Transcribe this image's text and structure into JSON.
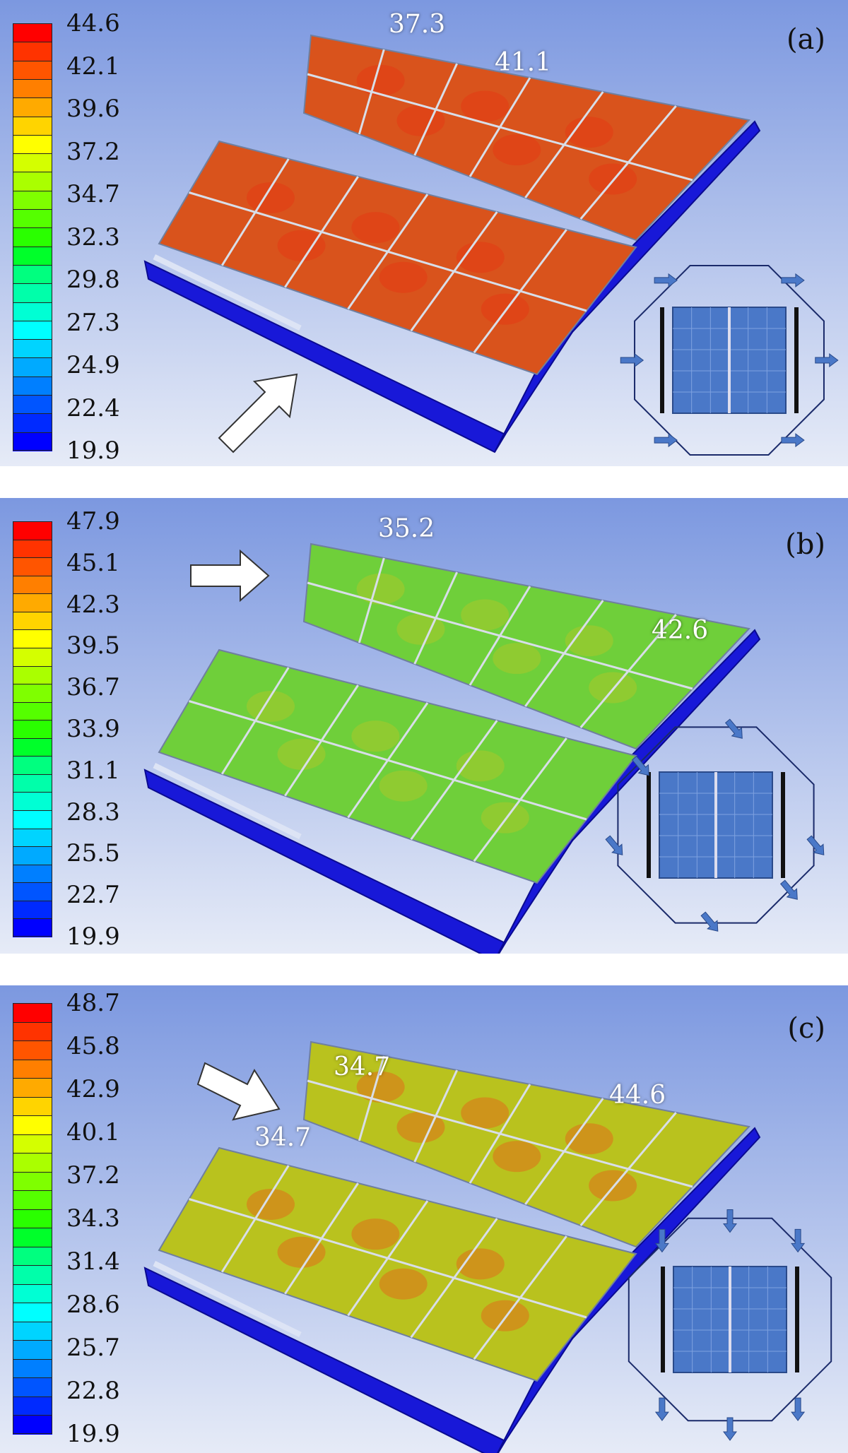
{
  "panels": [
    {
      "label": "(a)",
      "legend_ticks": [
        "44.6",
        "42.1",
        "39.6",
        "37.2",
        "34.7",
        "32.3",
        "29.8",
        "27.3",
        "24.9",
        "22.4",
        "19.9"
      ],
      "annotations": [
        "37.3",
        "41.1"
      ]
    },
    {
      "label": "(b)",
      "legend_ticks": [
        "47.9",
        "45.1",
        "42.3",
        "39.5",
        "36.7",
        "33.9",
        "31.1",
        "28.3",
        "25.5",
        "22.7",
        "19.9"
      ],
      "annotations": [
        "35.2",
        "42.6"
      ]
    },
    {
      "label": "(c)",
      "legend_ticks": [
        "48.7",
        "45.8",
        "42.9",
        "40.1",
        "37.2",
        "34.3",
        "31.4",
        "28.6",
        "25.7",
        "22.8",
        "19.9"
      ],
      "annotations": [
        "34.7",
        "34.7",
        "44.6"
      ]
    }
  ],
  "colors": {
    "legend_scale": [
      "#ff0000",
      "#ff3300",
      "#ff5500",
      "#ff7f00",
      "#ffaa00",
      "#ffd400",
      "#ffff00",
      "#d4ff00",
      "#aaff00",
      "#7fff00",
      "#55ff00",
      "#2aff00",
      "#00ff2a",
      "#00ff7f",
      "#00ffaa",
      "#00ffd4",
      "#00ffff",
      "#00d4ff",
      "#00aaff",
      "#007fff",
      "#0055ff",
      "#002aff",
      "#0000ff"
    ],
    "frame": "#1818d8",
    "hot_panel": "#d9531c",
    "warm_panel": "#b9c21e",
    "cool_panel": "#6fcf3a",
    "background_top": "#7c98e0",
    "background_bottom": "#e6ebf7"
  }
}
